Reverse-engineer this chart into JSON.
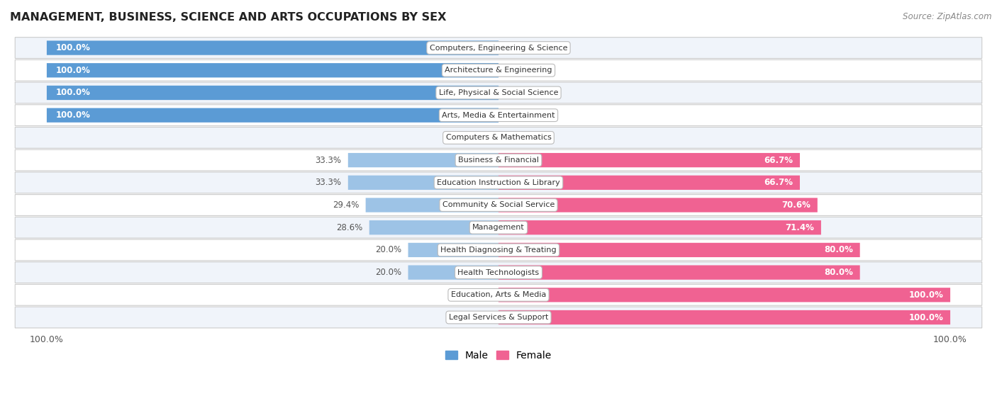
{
  "title": "MANAGEMENT, BUSINESS, SCIENCE AND ARTS OCCUPATIONS BY SEX",
  "source": "Source: ZipAtlas.com",
  "categories": [
    "Computers, Engineering & Science",
    "Architecture & Engineering",
    "Life, Physical & Social Science",
    "Arts, Media & Entertainment",
    "Computers & Mathematics",
    "Business & Financial",
    "Education Instruction & Library",
    "Community & Social Service",
    "Management",
    "Health Diagnosing & Treating",
    "Health Technologists",
    "Education, Arts & Media",
    "Legal Services & Support"
  ],
  "male_pct": [
    100.0,
    100.0,
    100.0,
    100.0,
    0.0,
    33.3,
    33.3,
    29.4,
    28.6,
    20.0,
    20.0,
    0.0,
    0.0
  ],
  "female_pct": [
    0.0,
    0.0,
    0.0,
    0.0,
    0.0,
    66.7,
    66.7,
    70.6,
    71.4,
    80.0,
    80.0,
    100.0,
    100.0
  ],
  "male_color_full": "#5b9bd5",
  "male_color_partial": "#9dc3e6",
  "female_color_full": "#f06292",
  "female_color_partial": "#f4a7b9",
  "label_inside_color": "white",
  "label_outside_color": "#555555",
  "row_bg_odd": "#f0f4fa",
  "row_bg_even": "#ffffff",
  "row_border_color": "#cccccc",
  "cat_box_facecolor": "white",
  "cat_box_edgecolor": "#bbbbbb",
  "legend_male_color": "#5b9bd5",
  "legend_female_color": "#f06292"
}
